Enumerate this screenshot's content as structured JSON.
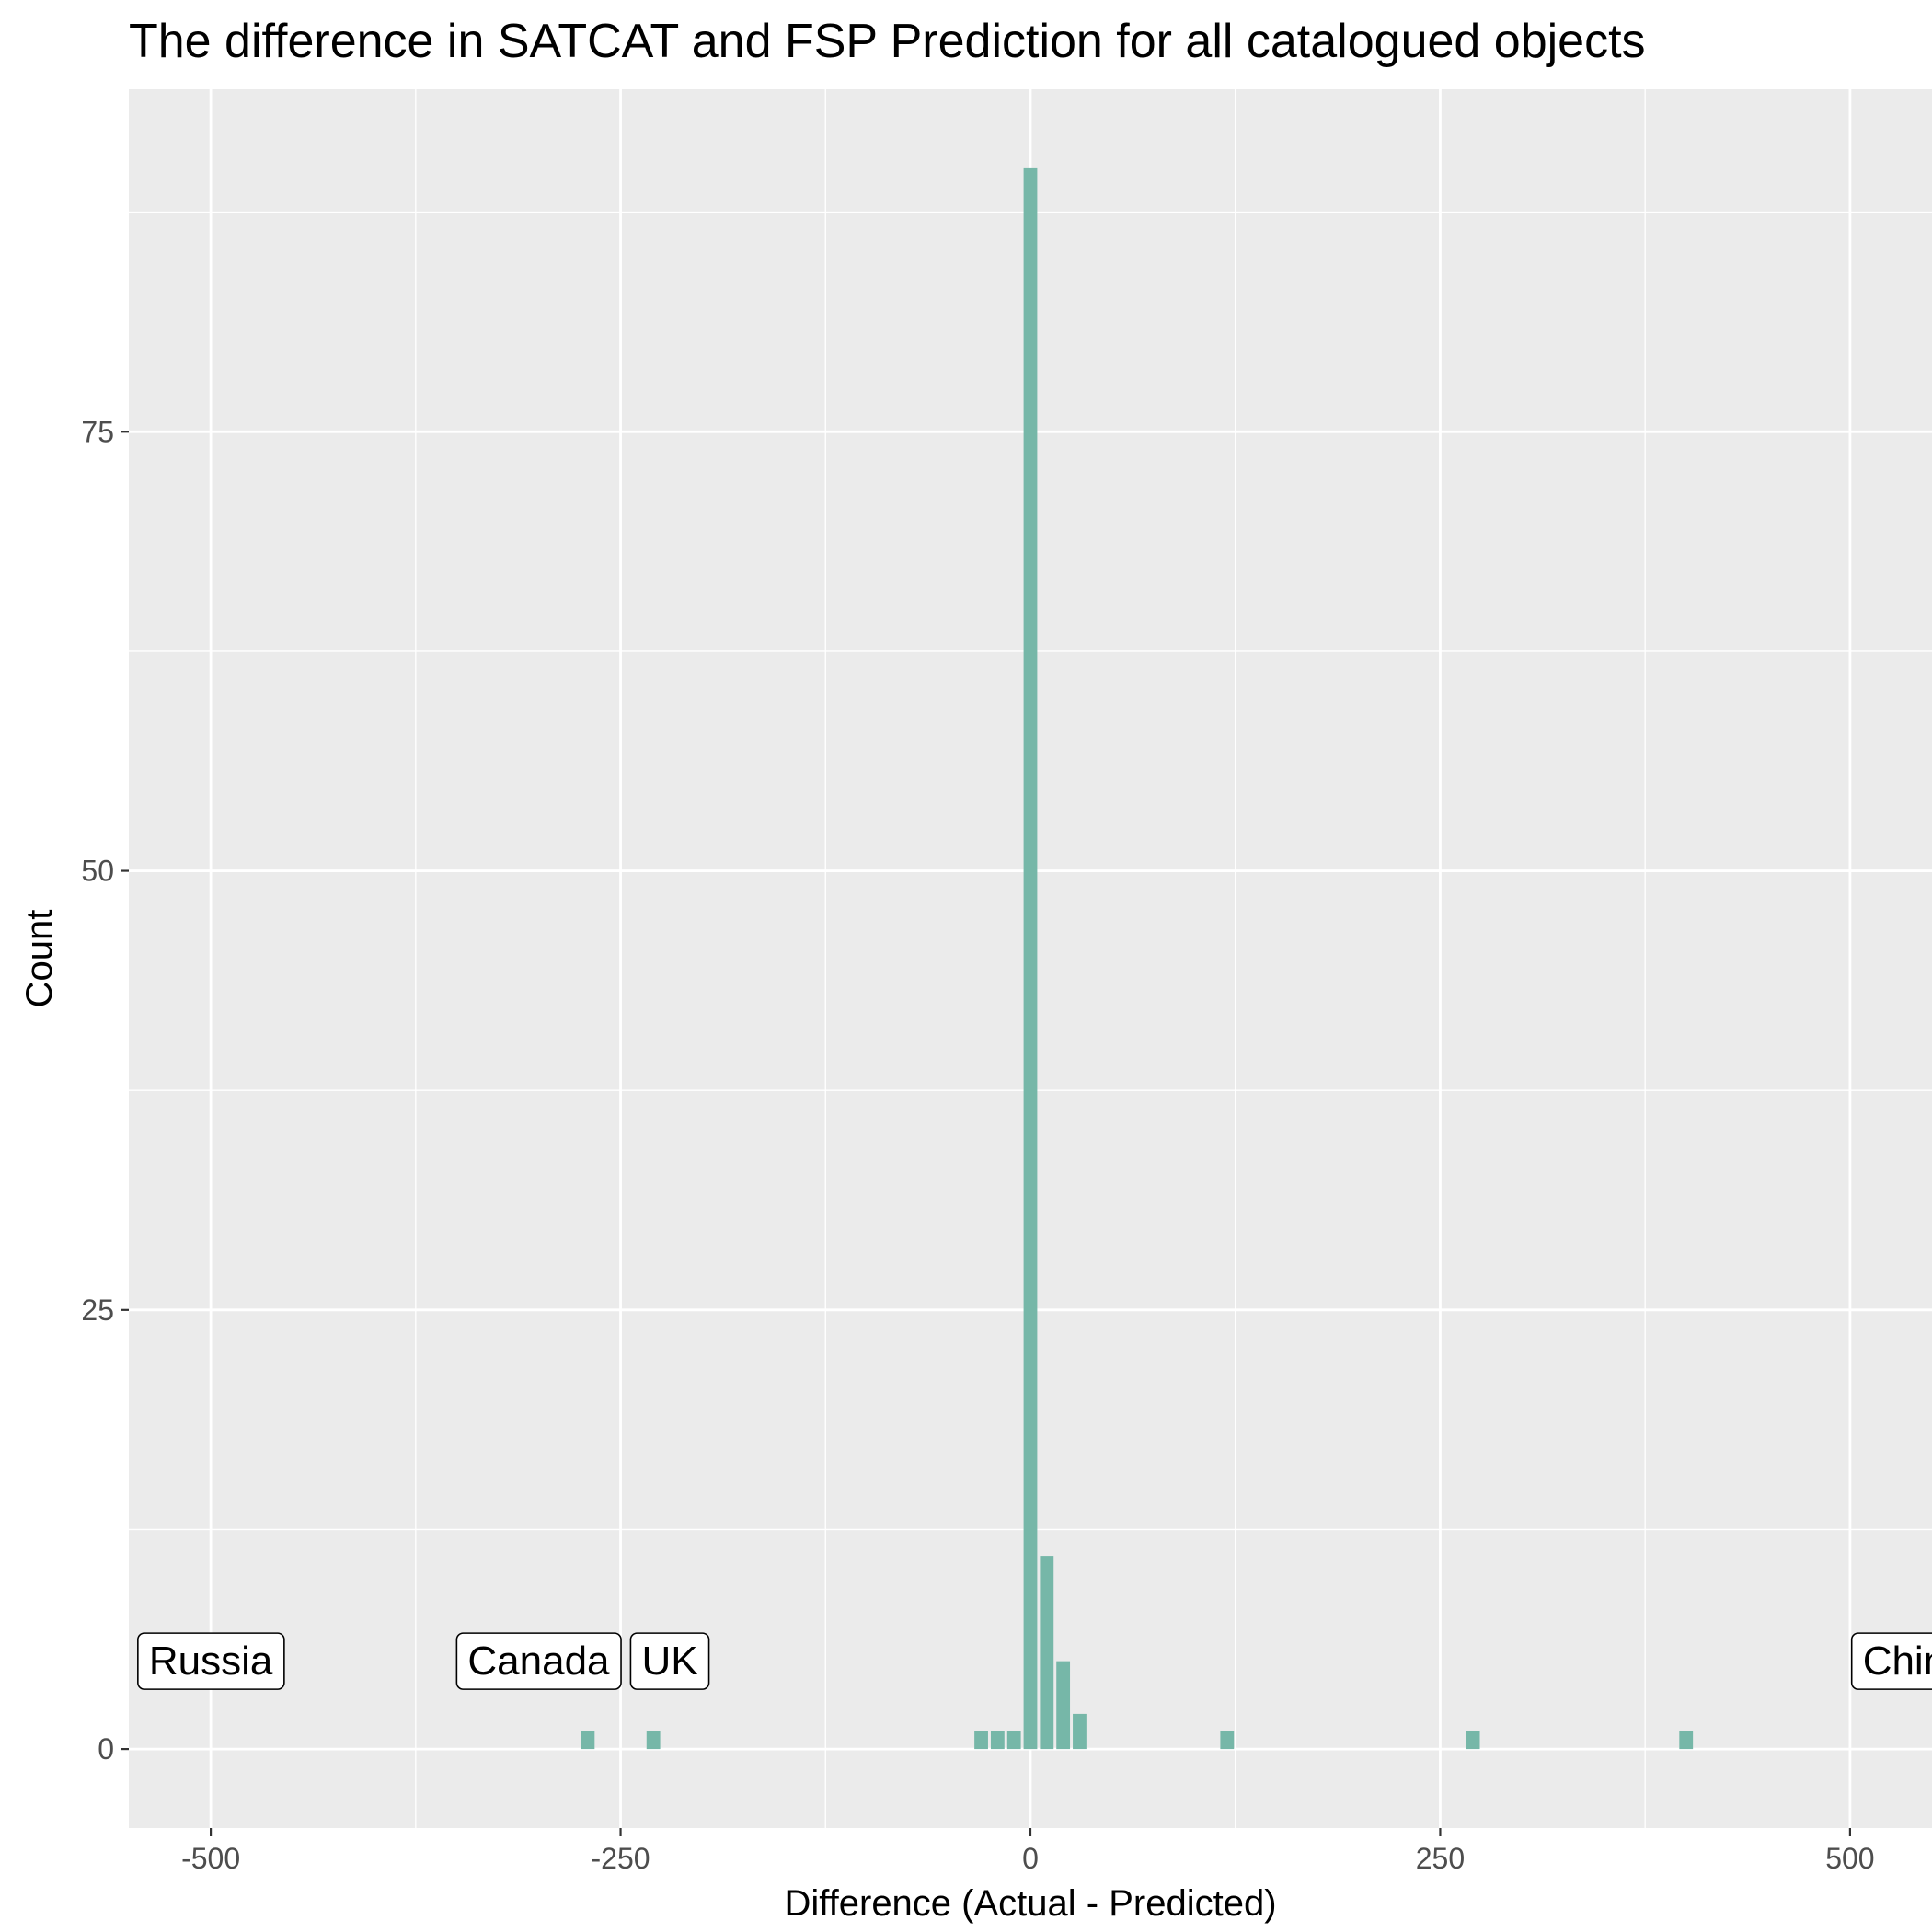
{
  "chart_data": {
    "type": "bar",
    "title": "The difference in SATCAT and FSP Prediction for all catalogued objects",
    "xlabel": "Difference (Actual - Predicted)",
    "ylabel": "Count",
    "xlim": [
      -550,
      550
    ],
    "ylim": [
      -4.5,
      94.5
    ],
    "x_ticks": [
      -500,
      -250,
      0,
      250,
      500
    ],
    "x_tick_labels": [
      "-500",
      "-250",
      "0",
      "250",
      "500"
    ],
    "y_ticks": [
      0,
      25,
      50,
      75
    ],
    "y_tick_labels": [
      "0",
      "25",
      "50",
      "75"
    ],
    "grid": true,
    "bin_width": 10,
    "bar_color": "#76b7a8",
    "panel_background": "#ebebeb",
    "grid_color": "#ffffff",
    "bars": [
      {
        "x": -270,
        "count": 1
      },
      {
        "x": -230,
        "count": 1
      },
      {
        "x": -30,
        "count": 1
      },
      {
        "x": -20,
        "count": 1
      },
      {
        "x": -10,
        "count": 1
      },
      {
        "x": 0,
        "count": 90
      },
      {
        "x": 10,
        "count": 11
      },
      {
        "x": 20,
        "count": 5
      },
      {
        "x": 30,
        "count": 2
      },
      {
        "x": 120,
        "count": 1
      },
      {
        "x": 270,
        "count": 1
      },
      {
        "x": 400,
        "count": 1
      }
    ],
    "annotations": [
      {
        "label": "Russia",
        "x": -500,
        "y": 5
      },
      {
        "label": "Canada",
        "x": -300,
        "y": 5
      },
      {
        "label": "UK",
        "x": -220,
        "y": 5
      },
      {
        "label": "China",
        "x": 540,
        "y": 5
      }
    ]
  }
}
